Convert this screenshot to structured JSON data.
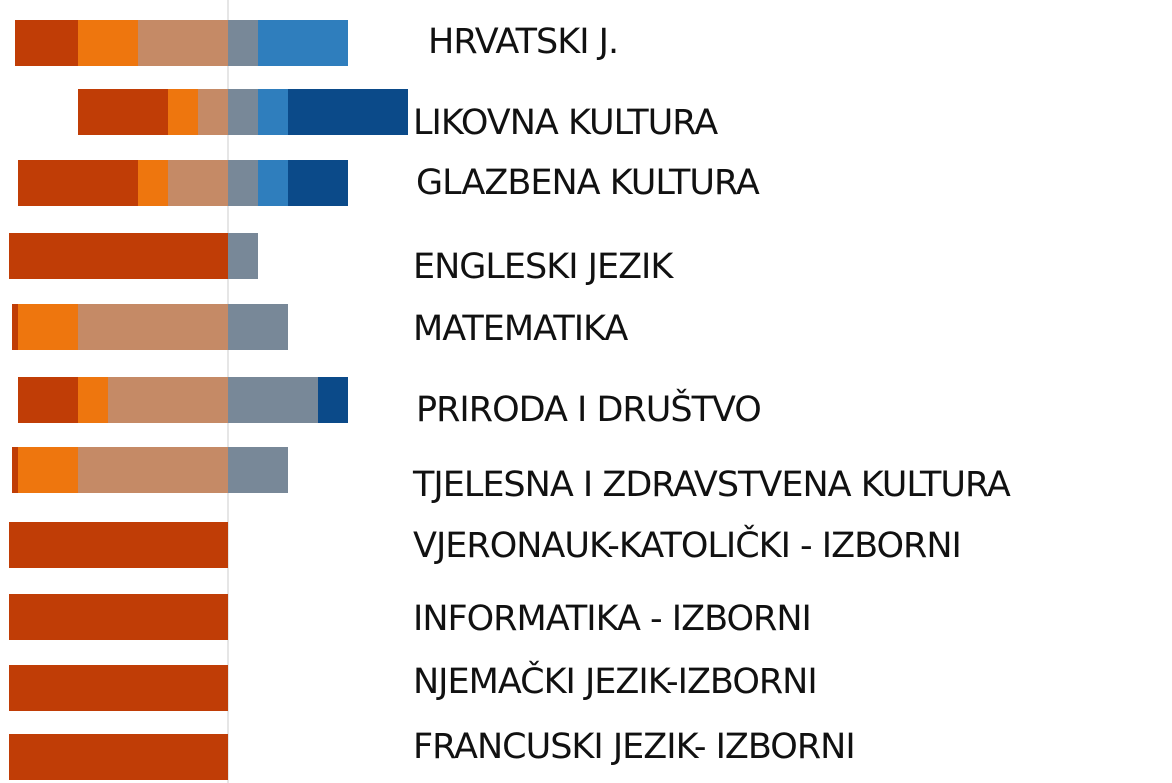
{
  "chart_data": {
    "type": "bar",
    "stacking": "diverging",
    "orientation": "horizontal",
    "categories": [
      "HRVATSKI J.",
      "LIKOVNA KULTURA",
      "GLAZBENA KULTURA",
      "ENGLESKI JEZIK",
      "MATEMATIKA",
      "PRIRODA I DRUŠTVO",
      "TJELESNA I ZDRAVSTVENA KULTURA",
      "VJERONAUK-KATOLIČKI - IZBORNI",
      "INFORMATIKA - IZBORNI",
      "NJEMAČKI JEZIK-IZBORNI",
      "FRANCUSKI JEZIK- IZBORNI"
    ],
    "series": [
      {
        "color": "#c03d06",
        "values": [
          21,
          30,
          40,
          73,
          2,
          20,
          2,
          73,
          73,
          73,
          73
        ]
      },
      {
        "color": "#ee760e",
        "values": [
          20,
          10,
          10,
          0,
          20,
          10,
          20,
          0,
          0,
          0,
          0
        ]
      },
      {
        "color": "#c58a66",
        "values": [
          30,
          10,
          20,
          0,
          50,
          40,
          50,
          0,
          0,
          0,
          0
        ]
      },
      {
        "color": "#788898",
        "values": [
          10,
          10,
          10,
          10,
          20,
          30,
          20,
          0,
          0,
          0,
          0
        ]
      },
      {
        "color": "#2f7ebd",
        "values": [
          30,
          10,
          10,
          0,
          0,
          0,
          0,
          0,
          0,
          0,
          0
        ]
      },
      {
        "color": "#0b4a89",
        "values": [
          0,
          40,
          20,
          0,
          0,
          10,
          0,
          0,
          0,
          0,
          0
        ]
      }
    ]
  }
}
